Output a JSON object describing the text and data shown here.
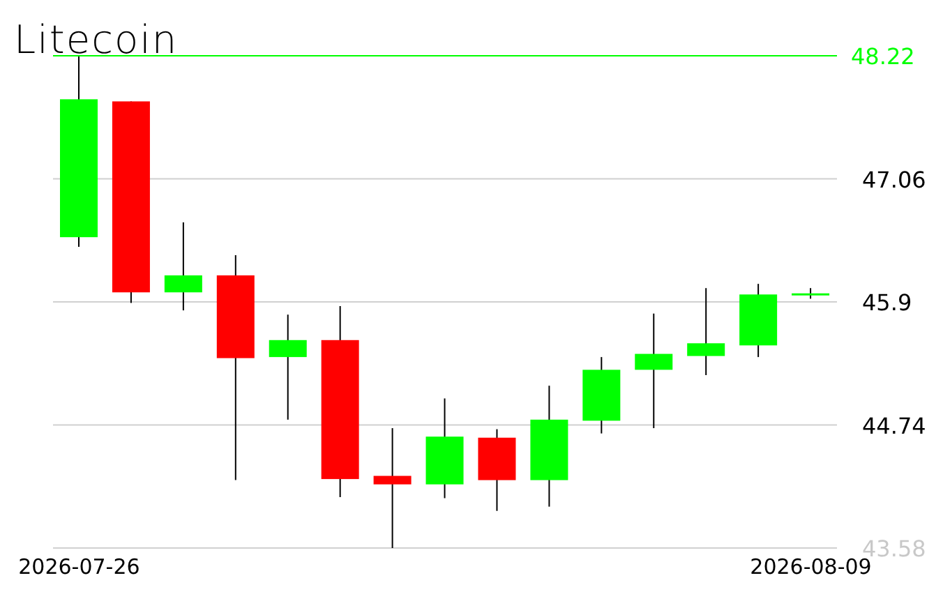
{
  "chart_data": {
    "type": "candlestick",
    "title": "Litecoin",
    "categories": [
      "2026-07-26",
      null,
      null,
      null,
      null,
      null,
      null,
      null,
      null,
      null,
      null,
      null,
      null,
      null,
      "2026-08-09"
    ],
    "ohlc": [
      [
        46.51,
        48.22,
        46.42,
        47.81
      ],
      [
        47.79,
        47.79,
        45.89,
        45.99
      ],
      [
        45.99,
        46.65,
        45.82,
        46.15
      ],
      [
        46.15,
        46.34,
        44.22,
        45.37
      ],
      [
        45.38,
        45.78,
        44.79,
        45.54
      ],
      [
        45.54,
        45.86,
        44.06,
        44.23
      ],
      [
        44.26,
        44.71,
        43.58,
        44.18
      ],
      [
        44.18,
        44.99,
        44.05,
        44.63
      ],
      [
        44.62,
        44.7,
        43.93,
        44.22
      ],
      [
        44.22,
        45.11,
        43.97,
        44.79
      ],
      [
        44.78,
        45.38,
        44.66,
        45.26
      ],
      [
        45.26,
        45.79,
        44.71,
        45.41
      ],
      [
        45.39,
        46.03,
        45.21,
        45.51
      ],
      [
        45.49,
        46.07,
        45.38,
        45.97
      ],
      [
        45.97,
        46.03,
        45.93,
        45.97
      ]
    ],
    "colors": [
      "#00ff00",
      "#ff0000",
      "#00ff00",
      "#ff0000",
      "#00ff00",
      "#ff0000",
      "#ff0000",
      "#00ff00",
      "#ff0000",
      "#00ff00",
      "#00ff00",
      "#00ff00",
      "#00ff00",
      "#00ff00",
      "#00ff00"
    ],
    "ylim": [
      43.58,
      48.22
    ],
    "yticks": [
      43.58,
      44.74,
      45.9,
      47.06
    ],
    "ref_lines": [
      {
        "axis": "y",
        "value": 48.22,
        "label": "48.22",
        "color": "#00ff00"
      }
    ],
    "grid": "y"
  }
}
